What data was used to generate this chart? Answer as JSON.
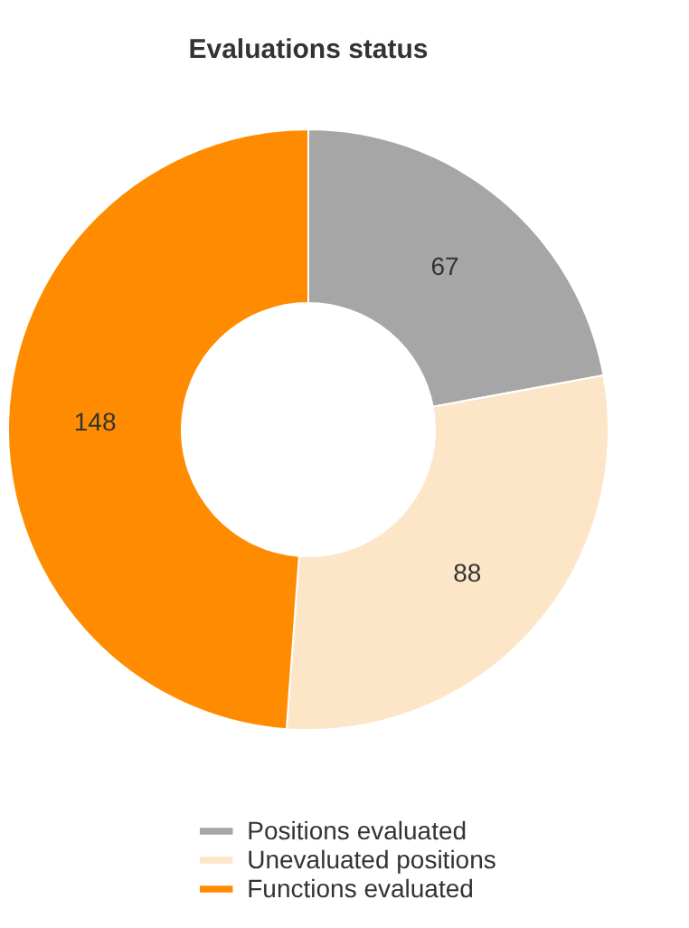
{
  "chart_data": {
    "type": "donut",
    "title": "Evaluations status",
    "categories": [
      "Positions evaluated",
      "Unevaluated positions",
      "Functions evaluated"
    ],
    "values": [
      67,
      88,
      148
    ],
    "colors": [
      "#a6a6a6",
      "#fde5c8",
      "#ff8c00"
    ],
    "data_labels": true,
    "legend": "bottom"
  }
}
